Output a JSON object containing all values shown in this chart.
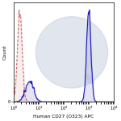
{
  "xlabel": "Human CD27 (O323) APC",
  "ylabel": "Count",
  "background_color": "#ffffff",
  "watermark_color": "#c8d0e0",
  "solid_line_color": "#2222bb",
  "solid_fill_color": "#8888cc",
  "dashed_line_color": "#cc5555",
  "dashed_fill_color": "#ddaaaa",
  "xlim": [
    1.0,
    10000
  ],
  "ylim": [
    0,
    1.08
  ],
  "iso_peak_mean_log": 0.55,
  "iso_peak_sigma_log": 0.22,
  "stain_dim_mean_log": 1.45,
  "stain_dim_sigma_log": 0.38,
  "stain_bright_mean_log": 6.9,
  "stain_bright_sigma_log": 0.2,
  "n_bins": 200
}
